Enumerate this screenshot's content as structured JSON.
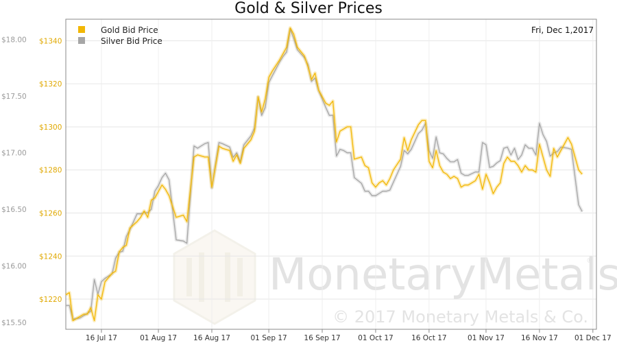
{
  "chart_data": {
    "type": "line",
    "title": "Gold & Silver Prices",
    "date_label": "Fri, Dec 1,2017",
    "x_start": "2017-07-06",
    "x_end": "2017-12-02",
    "x_ticks": [
      {
        "label": "16 Jul 17",
        "date": "2017-07-16"
      },
      {
        "label": "01 Aug 17",
        "date": "2017-08-01"
      },
      {
        "label": "16 Aug 17",
        "date": "2017-08-16"
      },
      {
        "label": "01 Sep 17",
        "date": "2017-09-01"
      },
      {
        "label": "16 Sep 17",
        "date": "2017-09-16"
      },
      {
        "label": "01 Oct 17",
        "date": "2017-10-01"
      },
      {
        "label": "16 Oct 17",
        "date": "2017-10-16"
      },
      {
        "label": "01 Nov 17",
        "date": "2017-11-01"
      },
      {
        "label": "16 Nov 17",
        "date": "2017-11-16"
      },
      {
        "label": "01 Dec 17",
        "date": "2017-12-01"
      }
    ],
    "left_axis": {
      "ylim": [
        15.44,
        18.18
      ],
      "ticks": [
        "$15.50",
        "$16.00",
        "$16.50",
        "$17.00",
        "$17.50",
        "$18.00"
      ],
      "tick_values": [
        15.5,
        16.0,
        16.5,
        17.0,
        17.5,
        18.0
      ]
    },
    "inner_axis": {
      "ylim": [
        1206,
        1350
      ],
      "ticks": [
        "$1220",
        "$1240",
        "$1260",
        "$1280",
        "$1300",
        "$1320",
        "$1340"
      ],
      "tick_values": [
        1220,
        1240,
        1260,
        1280,
        1300,
        1320,
        1340
      ]
    },
    "grid": true,
    "legend_position": "top-left",
    "series": [
      {
        "name": "Gold Bid Price",
        "color": "#f2b705",
        "axis": "inner",
        "points": [
          [
            "2017-07-06",
            1222
          ],
          [
            "2017-07-07",
            1223
          ],
          [
            "2017-07-08",
            1210
          ],
          [
            "2017-07-10",
            1212
          ],
          [
            "2017-07-11",
            1213
          ],
          [
            "2017-07-12",
            1213
          ],
          [
            "2017-07-13",
            1216
          ],
          [
            "2017-07-14",
            1210
          ],
          [
            "2017-07-15",
            1222
          ],
          [
            "2017-07-16",
            1220
          ],
          [
            "2017-07-17",
            1228
          ],
          [
            "2017-07-19",
            1232
          ],
          [
            "2017-07-20",
            1233
          ],
          [
            "2017-07-21",
            1242
          ],
          [
            "2017-07-22",
            1244
          ],
          [
            "2017-07-23",
            1245
          ],
          [
            "2017-07-24",
            1253
          ],
          [
            "2017-07-26",
            1256
          ],
          [
            "2017-07-27",
            1258
          ],
          [
            "2017-07-28",
            1261
          ],
          [
            "2017-07-29",
            1258
          ],
          [
            "2017-07-30",
            1266
          ],
          [
            "2017-07-31",
            1267
          ],
          [
            "2017-08-01",
            1270
          ],
          [
            "2017-08-02",
            1273
          ],
          [
            "2017-08-03",
            1271
          ],
          [
            "2017-08-04",
            1268
          ],
          [
            "2017-08-06",
            1258
          ],
          [
            "2017-08-08",
            1259
          ],
          [
            "2017-08-09",
            1256
          ],
          [
            "2017-08-11",
            1286
          ],
          [
            "2017-08-12",
            1287
          ],
          [
            "2017-08-14",
            1286
          ],
          [
            "2017-08-15",
            1286
          ],
          [
            "2017-08-16",
            1272
          ],
          [
            "2017-08-18",
            1291
          ],
          [
            "2017-08-19",
            1290
          ],
          [
            "2017-08-21",
            1289
          ],
          [
            "2017-08-22",
            1284
          ],
          [
            "2017-08-23",
            1287
          ],
          [
            "2017-08-24",
            1283
          ],
          [
            "2017-08-25",
            1290
          ],
          [
            "2017-08-27",
            1294
          ],
          [
            "2017-08-28",
            1298
          ],
          [
            "2017-08-29",
            1314
          ],
          [
            "2017-08-30",
            1307
          ],
          [
            "2017-08-31",
            1313
          ],
          [
            "2017-09-01",
            1323
          ],
          [
            "2017-09-02",
            1326
          ],
          [
            "2017-09-04",
            1331
          ],
          [
            "2017-09-05",
            1334
          ],
          [
            "2017-09-06",
            1337
          ],
          [
            "2017-09-07",
            1346
          ],
          [
            "2017-09-08",
            1343
          ],
          [
            "2017-09-09",
            1337
          ],
          [
            "2017-09-11",
            1333
          ],
          [
            "2017-09-12",
            1328
          ],
          [
            "2017-09-13",
            1322
          ],
          [
            "2017-09-14",
            1325
          ],
          [
            "2017-09-15",
            1317
          ],
          [
            "2017-09-17",
            1311
          ],
          [
            "2017-09-18",
            1310
          ],
          [
            "2017-09-19",
            1312
          ],
          [
            "2017-09-20",
            1293
          ],
          [
            "2017-09-21",
            1298
          ],
          [
            "2017-09-22",
            1299
          ],
          [
            "2017-09-23",
            1300
          ],
          [
            "2017-09-24",
            1300
          ],
          [
            "2017-09-25",
            1285
          ],
          [
            "2017-09-27",
            1286
          ],
          [
            "2017-09-28",
            1282
          ],
          [
            "2017-09-29",
            1281
          ],
          [
            "2017-09-30",
            1274
          ],
          [
            "2017-10-01",
            1272
          ],
          [
            "2017-10-02",
            1274
          ],
          [
            "2017-10-03",
            1275
          ],
          [
            "2017-10-04",
            1273
          ],
          [
            "2017-10-05",
            1276
          ],
          [
            "2017-10-06",
            1280
          ],
          [
            "2017-10-08",
            1285
          ],
          [
            "2017-10-09",
            1295
          ],
          [
            "2017-10-10",
            1289
          ],
          [
            "2017-10-11",
            1294
          ],
          [
            "2017-10-13",
            1301
          ],
          [
            "2017-10-14",
            1303
          ],
          [
            "2017-10-15",
            1303
          ],
          [
            "2017-10-16",
            1284
          ],
          [
            "2017-10-17",
            1281
          ],
          [
            "2017-10-18",
            1289
          ],
          [
            "2017-10-19",
            1282
          ],
          [
            "2017-10-20",
            1279
          ],
          [
            "2017-10-21",
            1278
          ],
          [
            "2017-10-22",
            1276
          ],
          [
            "2017-10-23",
            1277
          ],
          [
            "2017-10-24",
            1276
          ],
          [
            "2017-10-25",
            1272
          ],
          [
            "2017-10-26",
            1273
          ],
          [
            "2017-10-27",
            1273
          ],
          [
            "2017-10-29",
            1275
          ],
          [
            "2017-10-30",
            1278
          ],
          [
            "2017-10-31",
            1271
          ],
          [
            "2017-11-01",
            1278
          ],
          [
            "2017-11-02",
            1274
          ],
          [
            "2017-11-03",
            1269
          ],
          [
            "2017-11-04",
            1272
          ],
          [
            "2017-11-05",
            1274
          ],
          [
            "2017-11-06",
            1283
          ],
          [
            "2017-11-07",
            1286
          ],
          [
            "2017-11-08",
            1284
          ],
          [
            "2017-11-09",
            1284
          ],
          [
            "2017-11-10",
            1282
          ],
          [
            "2017-11-11",
            1279
          ],
          [
            "2017-11-12",
            1282
          ],
          [
            "2017-11-13",
            1280
          ],
          [
            "2017-11-14",
            1280
          ],
          [
            "2017-11-15",
            1279
          ],
          [
            "2017-11-16",
            1292
          ],
          [
            "2017-11-17",
            1286
          ],
          [
            "2017-11-18",
            1280
          ],
          [
            "2017-11-19",
            1277
          ],
          [
            "2017-11-20",
            1290
          ],
          [
            "2017-11-21",
            1286
          ],
          [
            "2017-11-22",
            1289
          ],
          [
            "2017-11-24",
            1295
          ],
          [
            "2017-11-25",
            1292
          ],
          [
            "2017-11-27",
            1280
          ],
          [
            "2017-11-28",
            1278
          ]
        ]
      },
      {
        "name": "Silver Bid Price",
        "color": "#a6a6a6",
        "axis": "left",
        "points": [
          [
            "2017-07-06",
            15.65
          ],
          [
            "2017-07-07",
            15.65
          ],
          [
            "2017-07-08",
            15.53
          ],
          [
            "2017-07-10",
            15.54
          ],
          [
            "2017-07-11",
            15.56
          ],
          [
            "2017-07-12",
            15.58
          ],
          [
            "2017-07-13",
            15.6
          ],
          [
            "2017-07-14",
            15.88
          ],
          [
            "2017-07-15",
            15.75
          ],
          [
            "2017-07-16",
            15.86
          ],
          [
            "2017-07-17",
            15.89
          ],
          [
            "2017-07-19",
            15.93
          ],
          [
            "2017-07-20",
            16.07
          ],
          [
            "2017-07-21",
            16.12
          ],
          [
            "2017-07-22",
            16.13
          ],
          [
            "2017-07-23",
            16.26
          ],
          [
            "2017-07-24",
            16.32
          ],
          [
            "2017-07-26",
            16.46
          ],
          [
            "2017-07-27",
            16.46
          ],
          [
            "2017-07-28",
            16.47
          ],
          [
            "2017-07-29",
            16.47
          ],
          [
            "2017-07-30",
            16.5
          ],
          [
            "2017-07-31",
            16.66
          ],
          [
            "2017-08-01",
            16.71
          ],
          [
            "2017-08-02",
            16.78
          ],
          [
            "2017-08-03",
            16.82
          ],
          [
            "2017-08-04",
            16.76
          ],
          [
            "2017-08-06",
            16.23
          ],
          [
            "2017-08-08",
            16.22
          ],
          [
            "2017-08-09",
            16.2
          ],
          [
            "2017-08-11",
            17.06
          ],
          [
            "2017-08-12",
            17.04
          ],
          [
            "2017-08-14",
            17.08
          ],
          [
            "2017-08-15",
            17.09
          ],
          [
            "2017-08-16",
            16.69
          ],
          [
            "2017-08-18",
            17.09
          ],
          [
            "2017-08-19",
            17.08
          ],
          [
            "2017-08-21",
            17.05
          ],
          [
            "2017-08-22",
            16.96
          ],
          [
            "2017-08-23",
            17.0
          ],
          [
            "2017-08-24",
            16.92
          ],
          [
            "2017-08-25",
            17.07
          ],
          [
            "2017-08-27",
            17.15
          ],
          [
            "2017-08-28",
            17.22
          ],
          [
            "2017-08-29",
            17.49
          ],
          [
            "2017-08-30",
            17.33
          ],
          [
            "2017-08-31",
            17.4
          ],
          [
            "2017-09-01",
            17.62
          ],
          [
            "2017-09-02",
            17.68
          ],
          [
            "2017-09-04",
            17.8
          ],
          [
            "2017-09-05",
            17.85
          ],
          [
            "2017-09-06",
            17.89
          ],
          [
            "2017-09-07",
            18.09
          ],
          [
            "2017-09-08",
            18.01
          ],
          [
            "2017-09-09",
            17.91
          ],
          [
            "2017-09-11",
            17.84
          ],
          [
            "2017-09-12",
            17.78
          ],
          [
            "2017-09-13",
            17.63
          ],
          [
            "2017-09-14",
            17.66
          ],
          [
            "2017-09-15",
            17.55
          ],
          [
            "2017-09-17",
            17.4
          ],
          [
            "2017-09-18",
            17.33
          ],
          [
            "2017-09-19",
            17.33
          ],
          [
            "2017-09-20",
            16.97
          ],
          [
            "2017-09-21",
            17.03
          ],
          [
            "2017-09-22",
            17.02
          ],
          [
            "2017-09-23",
            17.0
          ],
          [
            "2017-09-24",
            17.0
          ],
          [
            "2017-09-25",
            16.78
          ],
          [
            "2017-09-27",
            16.73
          ],
          [
            "2017-09-28",
            16.66
          ],
          [
            "2017-09-29",
            16.66
          ],
          [
            "2017-09-30",
            16.62
          ],
          [
            "2017-10-01",
            16.62
          ],
          [
            "2017-10-02",
            16.64
          ],
          [
            "2017-10-03",
            16.66
          ],
          [
            "2017-10-04",
            16.66
          ],
          [
            "2017-10-05",
            16.67
          ],
          [
            "2017-10-06",
            16.74
          ],
          [
            "2017-10-08",
            16.88
          ],
          [
            "2017-10-09",
            17.02
          ],
          [
            "2017-10-10",
            16.99
          ],
          [
            "2017-10-11",
            17.03
          ],
          [
            "2017-10-13",
            17.17
          ],
          [
            "2017-10-14",
            17.2
          ],
          [
            "2017-10-15",
            17.26
          ],
          [
            "2017-10-16",
            17.02
          ],
          [
            "2017-10-17",
            16.95
          ],
          [
            "2017-10-18",
            17.14
          ],
          [
            "2017-10-19",
            17.0
          ],
          [
            "2017-10-20",
            16.99
          ],
          [
            "2017-10-21",
            16.95
          ],
          [
            "2017-10-22",
            16.92
          ],
          [
            "2017-10-23",
            16.92
          ],
          [
            "2017-10-24",
            16.94
          ],
          [
            "2017-10-25",
            16.82
          ],
          [
            "2017-10-26",
            16.8
          ],
          [
            "2017-10-27",
            16.8
          ],
          [
            "2017-10-29",
            16.83
          ],
          [
            "2017-10-30",
            16.83
          ],
          [
            "2017-10-31",
            17.09
          ],
          [
            "2017-11-01",
            17.07
          ],
          [
            "2017-11-02",
            16.87
          ],
          [
            "2017-11-03",
            16.88
          ],
          [
            "2017-11-04",
            16.91
          ],
          [
            "2017-11-05",
            16.93
          ],
          [
            "2017-11-06",
            17.04
          ],
          [
            "2017-11-07",
            17.05
          ],
          [
            "2017-11-08",
            16.98
          ],
          [
            "2017-11-09",
            17.04
          ],
          [
            "2017-11-10",
            16.94
          ],
          [
            "2017-11-11",
            16.98
          ],
          [
            "2017-11-12",
            17.07
          ],
          [
            "2017-11-13",
            17.04
          ],
          [
            "2017-11-14",
            17.04
          ],
          [
            "2017-11-15",
            16.98
          ],
          [
            "2017-11-16",
            17.26
          ],
          [
            "2017-11-17",
            17.16
          ],
          [
            "2017-11-18",
            17.1
          ],
          [
            "2017-11-19",
            16.97
          ],
          [
            "2017-11-20",
            17.0
          ],
          [
            "2017-11-21",
            17.01
          ],
          [
            "2017-11-22",
            17.05
          ],
          [
            "2017-11-24",
            17.04
          ],
          [
            "2017-11-25",
            17.03
          ],
          [
            "2017-11-27",
            16.54
          ],
          [
            "2017-11-28",
            16.48
          ]
        ]
      }
    ]
  },
  "watermark": {
    "brand": "MonetaryMetals",
    "registered": "®",
    "copyright": "© 2017 Monetary Metals & Co."
  }
}
